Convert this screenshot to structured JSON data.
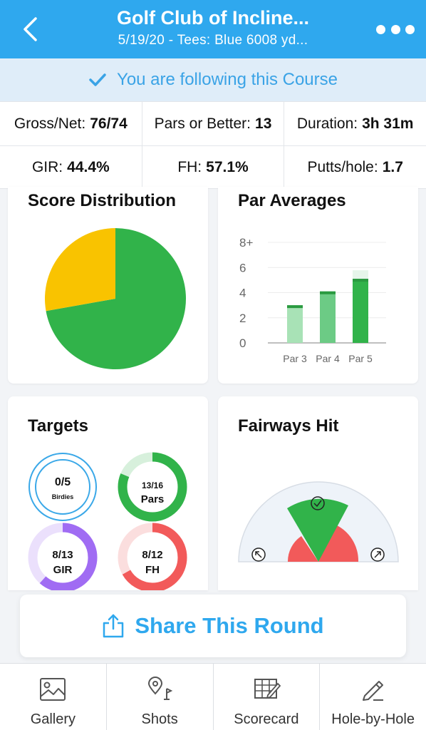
{
  "header": {
    "title": "Golf Club of Incline...",
    "subtitle": "5/19/20 - Tees: Blue 6008 yd...",
    "back_icon": "chevron-left-icon",
    "more_icon": "more-dots-icon"
  },
  "following": {
    "text": "You are following this Course",
    "icon": "check-icon"
  },
  "stats": {
    "gross_net_label": "Gross/Net:",
    "gross_net_value": "76/74",
    "pars_label": "Pars or Better:",
    "pars_value": "13",
    "duration_label": "Duration:",
    "duration_value": "3h 31m",
    "gir_label": "GIR:",
    "gir_value": "44.4%",
    "fh_label": "FH:",
    "fh_value": "57.1%",
    "putts_label": "Putts/hole:",
    "putts_value": "1.7"
  },
  "score_distribution": {
    "title": "Score Distribution",
    "chart_data": {
      "type": "pie",
      "slices": [
        {
          "value": 13,
          "color": "#31b34a"
        },
        {
          "value": 5,
          "color": "#f9c300"
        }
      ]
    }
  },
  "par_averages": {
    "title": "Par Averages",
    "chart_data": {
      "type": "bar",
      "categories": [
        "Par 3",
        "Par 4",
        "Par 5"
      ],
      "values": [
        3.0,
        4.1,
        5.1
      ],
      "expected": [
        3,
        4,
        5
      ],
      "ylim": [
        0,
        8
      ],
      "y_ticks": [
        "0",
        "2",
        "4",
        "6",
        "8+"
      ],
      "colors": [
        "#a8e2b6",
        "#6ccb85",
        "#31b34a"
      ]
    }
  },
  "targets": {
    "title": "Targets",
    "items": [
      {
        "value": "0/5",
        "label": "Birdies",
        "fraction": 0,
        "color": "#3aa8e8"
      },
      {
        "value": "13/16",
        "label": "Pars",
        "fraction": 0.8125,
        "color": "#31b34a"
      },
      {
        "value": "8/13",
        "label": "GIR",
        "fraction": 0.615,
        "color": "#a06cf3"
      },
      {
        "value": "8/12",
        "label": "FH",
        "fraction": 0.667,
        "color": "#f25a5a"
      }
    ]
  },
  "fairways_hit": {
    "title": "Fairways Hit",
    "left_icon": "arrow-up-left-icon",
    "center_icon": "check-icon",
    "right_icon": "arrow-up-right-icon",
    "colors": {
      "hit": "#31b34a",
      "miss": "#f25a5a"
    }
  },
  "share": {
    "label": "Share This Round",
    "icon": "share-icon"
  },
  "nav": [
    {
      "label": "Gallery",
      "icon": "image-icon"
    },
    {
      "label": "Shots",
      "icon": "map-pin-icon"
    },
    {
      "label": "Scorecard",
      "icon": "scorecard-icon"
    },
    {
      "label": "Hole-by-Hole",
      "icon": "pencil-icon"
    }
  ]
}
